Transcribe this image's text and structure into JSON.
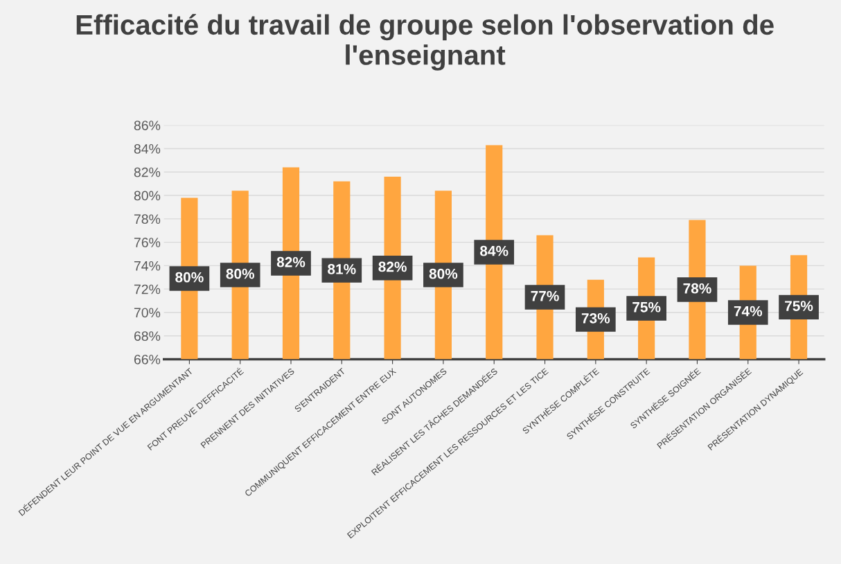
{
  "chart_data": {
    "type": "bar",
    "title": "Efficacité du travail de groupe selon l'observation de l'enseignant",
    "categories": [
      "DÉFENDENT LEUR POINT DE VUE EN ARGUMENTANT",
      "FONT PREUVE D'EFFICACITÉ",
      "PRENNENT DES INITIATIVES",
      "S'ENTRAIDENT",
      "COMMUNIQUENT EFFICACEMENT ENTRE EUX",
      "SONT AUTONOMES",
      "RÉALISENT LES TÂCHES DEMANDÉES",
      "EXPLOITENT EFFICACEMENT LES RESSOURCES ET LES TICE",
      "SYNTHÈSE COMPLÈTE",
      "SYNTHÈSE CONSTRUITE",
      "SYNTHÈSE SOIGNÉE",
      "PRÉSENTATION ORGANISÉE",
      "PRÉSENTATION DYNAMIQUE"
    ],
    "values": [
      79.8,
      80.4,
      82.4,
      81.2,
      81.6,
      80.4,
      84.3,
      76.6,
      72.8,
      74.7,
      77.9,
      74.0,
      74.9
    ],
    "value_labels": [
      "80%",
      "80%",
      "82%",
      "81%",
      "82%",
      "80%",
      "84%",
      "77%",
      "73%",
      "75%",
      "78%",
      "74%",
      "75%"
    ],
    "color": "#ffa640",
    "ylim": [
      66,
      86
    ],
    "yticks": [
      {
        "value": 66,
        "label": "66%"
      },
      {
        "value": 68,
        "label": "68%"
      },
      {
        "value": 70,
        "label": "70%"
      },
      {
        "value": 72,
        "label": "72%"
      },
      {
        "value": 74,
        "label": "74%"
      },
      {
        "value": 76,
        "label": "76%"
      },
      {
        "value": 78,
        "label": "78%"
      },
      {
        "value": 80,
        "label": "80%"
      },
      {
        "value": 82,
        "label": "82%"
      },
      {
        "value": 84,
        "label": "84%"
      },
      {
        "value": 86,
        "label": "86%"
      }
    ],
    "grid": "y"
  }
}
